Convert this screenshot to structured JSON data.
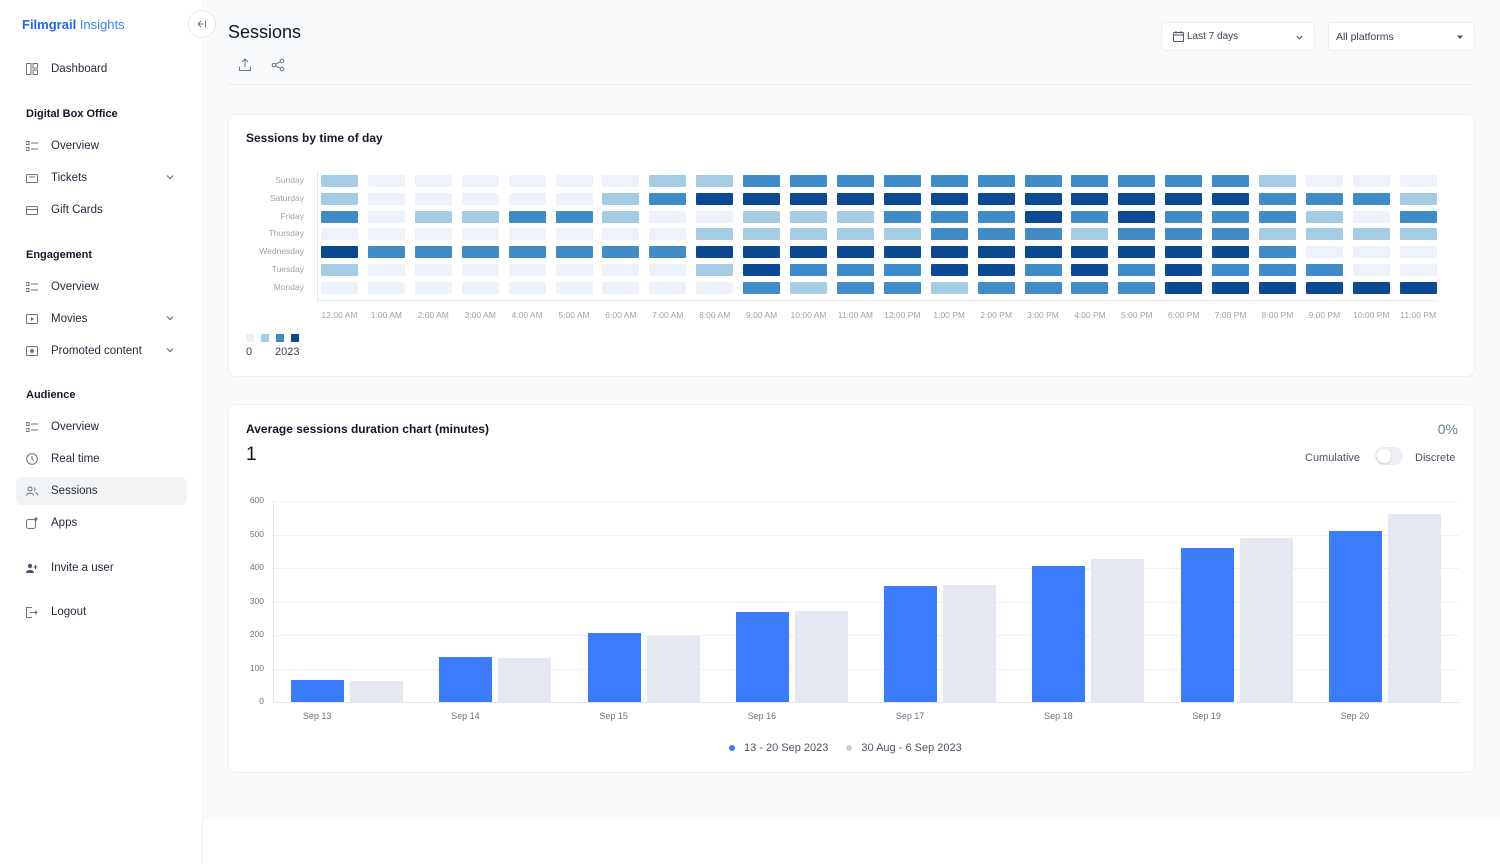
{
  "colors": {
    "accent": "#3b7cff",
    "previous": "#e5e8f0",
    "brand": "#2563eb"
  },
  "app": {
    "brand_bold": "Filmgrail",
    "brand_light": "Insights"
  },
  "sidebar": {
    "dashboard": "Dashboard",
    "sections": {
      "box_office": "Digital Box Office",
      "engagement": "Engagement",
      "audience": "Audience"
    },
    "box_office_items": [
      "Overview",
      "Tickets",
      "Gift Cards"
    ],
    "engagement_items": [
      "Overview",
      "Movies",
      "Promoted content"
    ],
    "audience_items": [
      "Overview",
      "Real time",
      "Sessions",
      "Apps"
    ],
    "invite": "Invite a user",
    "logout": "Logout"
  },
  "header": {
    "title": "Sessions",
    "date_range": "Last 7 days",
    "platform": "All platforms"
  },
  "heatmap": {
    "title": "Sessions by time of day",
    "days": [
      "Sunday",
      "Saturday",
      "Friday",
      "Thursday",
      "Wednesday",
      "Tuesday",
      "Monday"
    ],
    "hours": [
      "12:00 AM",
      "1:00 AM",
      "2:00 AM",
      "3:00 AM",
      "4:00 AM",
      "5:00 AM",
      "6:00 AM",
      "7:00 AM",
      "8:00 AM",
      "9:00 AM",
      "10:00 AM",
      "11:00 AM",
      "12:00 PM",
      "1:00 PM",
      "2:00 PM",
      "3:00 PM",
      "4:00 PM",
      "5:00 PM",
      "6:00 PM",
      "7:00 PM",
      "8:00 PM",
      "9:00 PM",
      "10:00 PM",
      "11:00 PM"
    ],
    "levels": [
      [
        1,
        0,
        0,
        0,
        0,
        0,
        0,
        1,
        1,
        2,
        2,
        2,
        2,
        2,
        2,
        2,
        2,
        2,
        2,
        2,
        1,
        0,
        0,
        0
      ],
      [
        1,
        0,
        0,
        0,
        0,
        0,
        1,
        2,
        3,
        3,
        3,
        3,
        3,
        3,
        3,
        3,
        3,
        3,
        3,
        3,
        2,
        2,
        2,
        1
      ],
      [
        2,
        0,
        1,
        1,
        2,
        2,
        1,
        0,
        0,
        1,
        1,
        1,
        2,
        2,
        2,
        3,
        2,
        3,
        2,
        2,
        2,
        1,
        0,
        2
      ],
      [
        0,
        0,
        0,
        0,
        0,
        0,
        0,
        0,
        1,
        1,
        1,
        1,
        1,
        2,
        2,
        2,
        1,
        2,
        2,
        2,
        1,
        1,
        1,
        1
      ],
      [
        3,
        2,
        2,
        2,
        2,
        2,
        2,
        2,
        3,
        3,
        3,
        3,
        3,
        3,
        3,
        3,
        3,
        3,
        3,
        3,
        2,
        0,
        0,
        0
      ],
      [
        1,
        0,
        0,
        0,
        0,
        0,
        0,
        0,
        1,
        3,
        2,
        2,
        2,
        3,
        3,
        2,
        3,
        2,
        3,
        2,
        2,
        2,
        0,
        0
      ],
      [
        0,
        0,
        0,
        0,
        0,
        0,
        0,
        0,
        0,
        2,
        1,
        2,
        2,
        1,
        2,
        2,
        2,
        2,
        3,
        3,
        3,
        3,
        3,
        3
      ]
    ],
    "level_colors": [
      "#eef2fb",
      "#a6cce3",
      "#3f8cc8",
      "#0b4a93"
    ],
    "legend_min": "0",
    "legend_max": "2023"
  },
  "duration": {
    "title": "Average sessions duration chart (minutes)",
    "value": "1",
    "change": "0%",
    "toggle_left": "Cumulative",
    "toggle_right": "Discrete"
  },
  "chart_data": {
    "type": "bar",
    "categories": [
      "Sep 13",
      "Sep 14",
      "Sep 15",
      "Sep 16",
      "Sep 17",
      "Sep 18",
      "Sep 19",
      "Sep 20"
    ],
    "series": [
      {
        "name": "13 - 20 Sep 2023",
        "values": [
          65,
          135,
          205,
          270,
          345,
          405,
          460,
          510
        ]
      },
      {
        "name": "30 Aug - 6 Sep 2023",
        "values": [
          62,
          132,
          197,
          273,
          350,
          428,
          490,
          560
        ]
      }
    ],
    "ylim": [
      0,
      600
    ],
    "yticks": [
      "0",
      "100",
      "200",
      "300",
      "400",
      "500",
      "600"
    ],
    "title": "",
    "xlabel": "",
    "ylabel": "",
    "legend": "bottom-center",
    "grid": true
  }
}
